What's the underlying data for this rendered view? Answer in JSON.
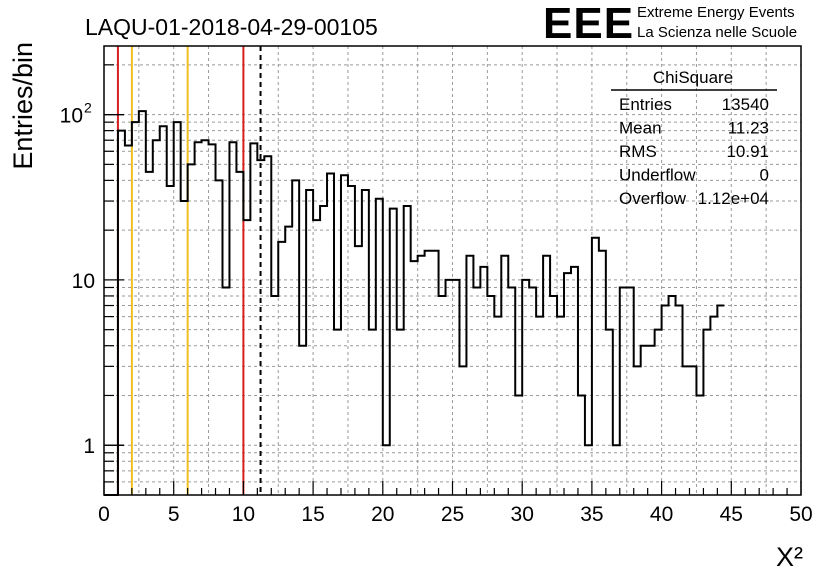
{
  "header": {
    "run_id": "LAQU-01-2018-04-29-00105"
  },
  "logo": {
    "letters": "EEE",
    "line1": "Extreme Energy Events",
    "line2": "La Scienza nelle Scuole",
    "color": "#1a1aff"
  },
  "stats_box": {
    "title": "ChiSquare",
    "rows": [
      {
        "label": "Entries",
        "value": "13540"
      },
      {
        "label": "Mean",
        "value": "11.23"
      },
      {
        "label": "RMS",
        "value": "10.91"
      },
      {
        "label": "Underflow",
        "value": "0"
      },
      {
        "label": "Overflow",
        "value": "1.12e+04"
      }
    ]
  },
  "chart_data": {
    "type": "bar",
    "style": "step-histogram",
    "ylabel": "Entries/bin",
    "xlabel": "X²",
    "xlim": [
      0,
      50
    ],
    "ylim": [
      0.5,
      260
    ],
    "yscale": "log",
    "grid": true,
    "bin_width": 0.5,
    "x_ticks": [
      "0",
      "5",
      "10",
      "15",
      "20",
      "25",
      "30",
      "35",
      "40",
      "45",
      "50"
    ],
    "y_ticks": [
      {
        "value": 1,
        "label": "1"
      },
      {
        "value": 10,
        "label": "10"
      },
      {
        "value": 100,
        "label": "10",
        "exponent": "2"
      }
    ],
    "values": [
      0,
      0,
      80,
      65,
      90,
      105,
      45,
      70,
      85,
      37,
      90,
      30,
      50,
      68,
      70,
      66,
      40,
      9,
      68,
      45,
      23,
      67,
      53,
      56,
      8,
      17,
      21,
      40,
      4,
      35,
      23,
      28,
      44,
      5,
      43,
      37,
      16,
      35,
      5,
      31,
      1,
      27,
      5,
      28,
      13,
      14,
      15,
      15,
      8,
      10,
      10,
      3,
      14,
      9,
      12,
      8,
      6,
      14,
      9,
      2,
      10,
      9,
      6,
      14,
      8,
      6,
      11,
      12,
      2,
      1,
      18,
      15,
      5,
      1,
      9,
      9,
      3,
      4,
      4,
      5,
      7,
      8,
      7,
      3,
      3,
      2,
      5,
      6,
      7
    ]
  },
  "reference_lines": [
    {
      "x": 1,
      "color": "#d62020",
      "style": "solid"
    },
    {
      "x": 2,
      "color": "#f0c020",
      "style": "solid"
    },
    {
      "x": 6,
      "color": "#f0c020",
      "style": "solid"
    },
    {
      "x": 10,
      "color": "#d62020",
      "style": "solid"
    },
    {
      "x": 11.23,
      "color": "#000000",
      "style": "dashed"
    }
  ]
}
